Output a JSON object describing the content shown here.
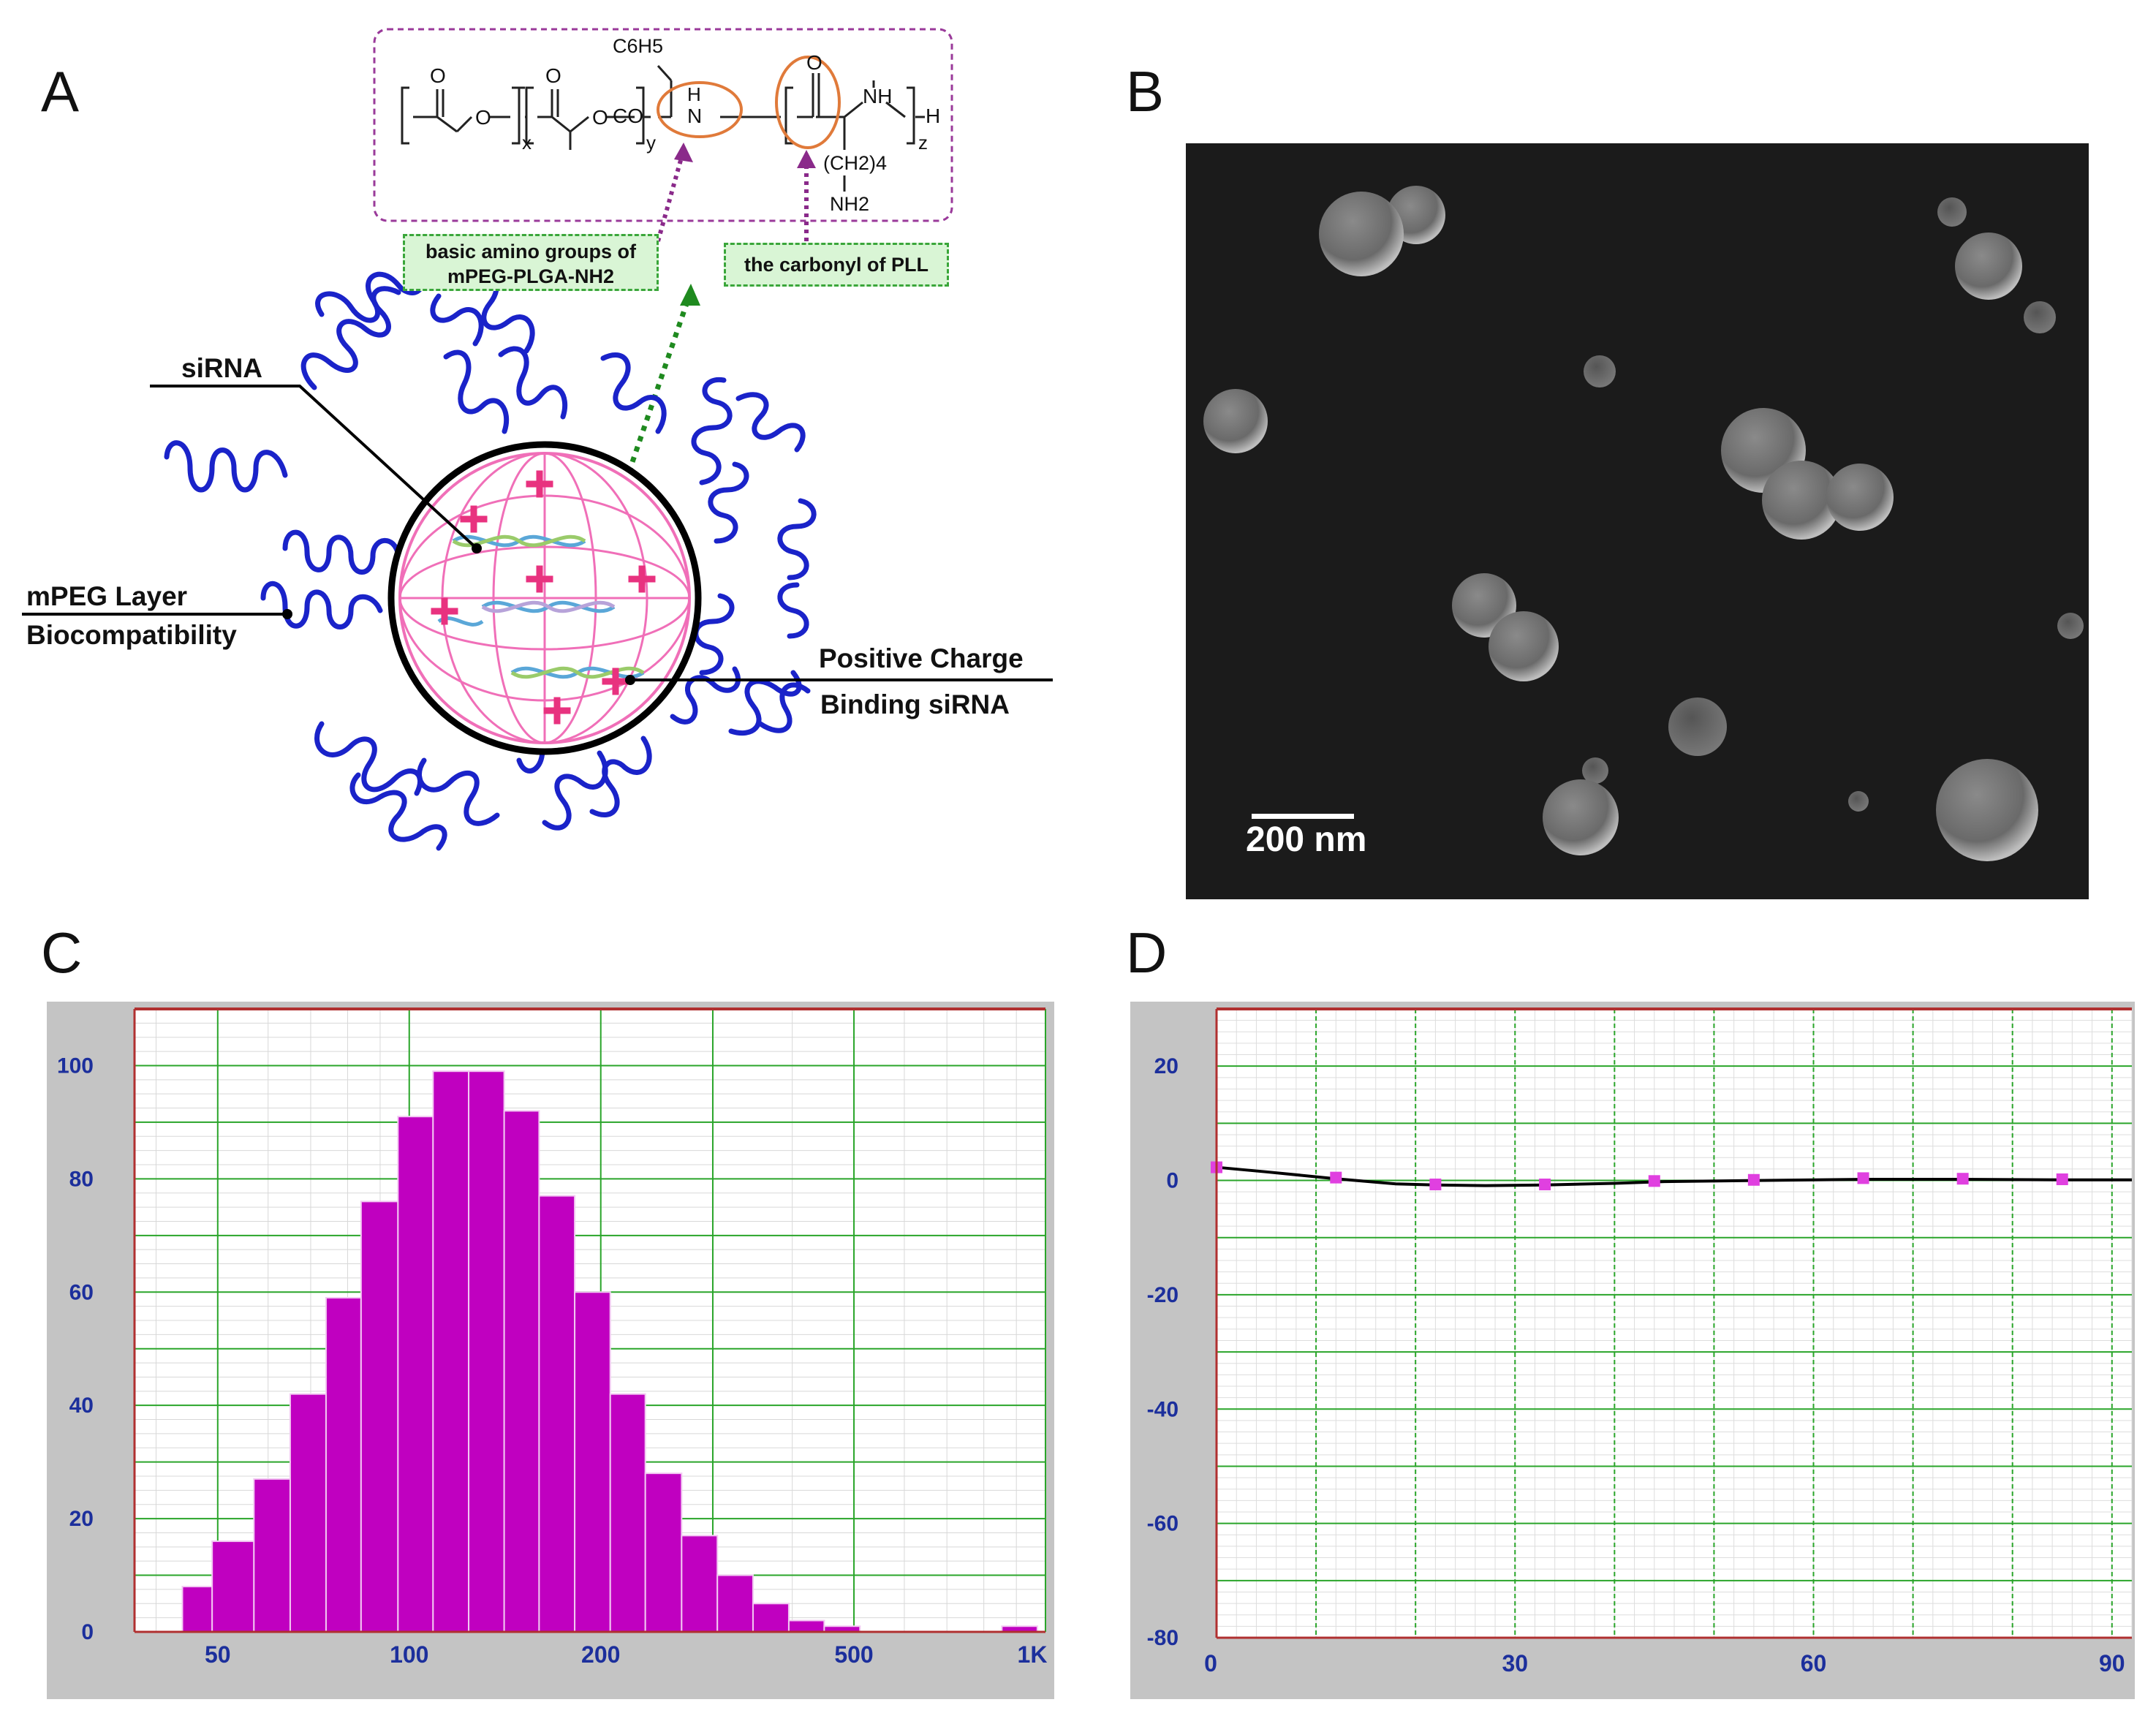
{
  "panels": {
    "a": "A",
    "b": "B",
    "c": "C",
    "d": "D"
  },
  "panel_a": {
    "chem_c6h5": "C6H5",
    "chem_x": "x",
    "chem_y": "y",
    "chem_z": "z",
    "chem_co": "CO",
    "chem_n": "N",
    "chem_h": "H",
    "chem_nh": "NH",
    "chem_h_end": "H",
    "chem_ch2": "(CH2)4",
    "chem_nh2": "NH2",
    "chem_o": "O",
    "box_amino_line1": "basic amino groups of",
    "box_amino_line2": "mPEG-PLGA-NH2",
    "box_carbonyl": "the carbonyl of PLL",
    "label_sirna": "siRNA",
    "label_mpeg_line1": "mPEG Layer",
    "label_mpeg_line2": "Biocompatibility",
    "label_pos_line1": "Positive Charge",
    "label_pos_line2": "Binding siRNA",
    "colors": {
      "chain": "#1a23c9",
      "sphere_lines": "#f06fb8",
      "plus": "#e8327f",
      "orange_circle": "#e07a3a",
      "dashed_purple": "#8a2a8a",
      "dashed_green": "#1f8a1f"
    }
  },
  "panel_b": {
    "scale_bar_label": "200 nm"
  },
  "chart_data": [
    {
      "panel": "C",
      "type": "bar",
      "x_scale": "log",
      "x_tick_labels": [
        "50",
        "100",
        "200",
        "500",
        "1K"
      ],
      "y_tick_labels": [
        "0",
        "20",
        "40",
        "60",
        "80",
        "100"
      ],
      "ylim": [
        0,
        110
      ],
      "xlim": [
        37,
        1000
      ],
      "bin_edges": [
        44,
        49,
        57,
        65,
        74,
        84,
        96,
        109,
        124,
        141,
        160,
        182,
        207,
        235,
        268,
        305,
        347,
        395,
        449,
        511,
        581,
        661,
        751,
        854,
        971
      ],
      "values": [
        8,
        16,
        27,
        42,
        59,
        76,
        91,
        99,
        99,
        92,
        77,
        60,
        42,
        28,
        17,
        10,
        5,
        2,
        1,
        0,
        0,
        0,
        0,
        1
      ],
      "bar_color": "#c000c0",
      "grid": true
    },
    {
      "panel": "D",
      "type": "line",
      "x_tick_labels": [
        "0",
        "30",
        "60",
        "90"
      ],
      "y_tick_labels": [
        "20",
        "0",
        "-20",
        "-40",
        "-60",
        "-80"
      ],
      "xlim": [
        0,
        92
      ],
      "ylim": [
        -80,
        30
      ],
      "line_x": [
        0,
        5,
        12,
        18,
        22,
        27,
        33,
        40,
        45,
        55,
        65,
        75,
        85,
        92
      ],
      "line_y": [
        2.3,
        1.5,
        0.3,
        -0.6,
        -0.8,
        -0.9,
        -0.8,
        -0.5,
        -0.2,
        0,
        0.2,
        0.2,
        0.1,
        0.1
      ],
      "points_x": [
        0,
        12,
        22,
        33,
        44,
        54,
        65,
        75,
        85
      ],
      "points_y": [
        2.3,
        0.5,
        -0.7,
        -0.7,
        -0.1,
        0.1,
        0.4,
        0.3,
        0.2
      ],
      "line_color": "#000000",
      "marker_color": "#e040e0",
      "grid": true
    }
  ]
}
